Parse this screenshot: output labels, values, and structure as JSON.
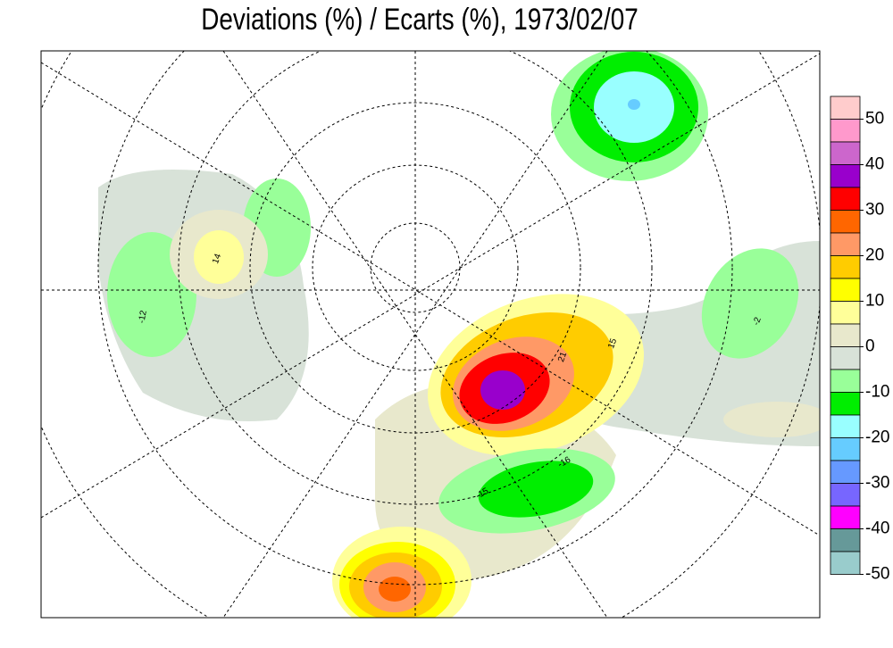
{
  "chart_data": {
    "type": "map",
    "title": "Deviations (%) / Ecarts (%), 1973/02/07",
    "colorbar": {
      "colors": [
        "#ffcccc",
        "#ff99cc",
        "#cc66cc",
        "#9900cc",
        "#ff0000",
        "#ff6600",
        "#ff9966",
        "#ffcc00",
        "#ffff00",
        "#ffff99",
        "#e8e8cc",
        "#d8e2d8",
        "#99ff99",
        "#00ee00",
        "#99ffff",
        "#66ccff",
        "#6699ff",
        "#7766ff",
        "#ff00ff",
        "#669999",
        "#99cccc"
      ],
      "lim": [
        -50,
        55
      ],
      "ticks": [
        50,
        40,
        30,
        20,
        10,
        0,
        -10,
        -20,
        -30,
        -40,
        -50
      ]
    },
    "annotations": [
      14,
      -12,
      -15,
      21,
      15,
      -16,
      -2
    ]
  }
}
